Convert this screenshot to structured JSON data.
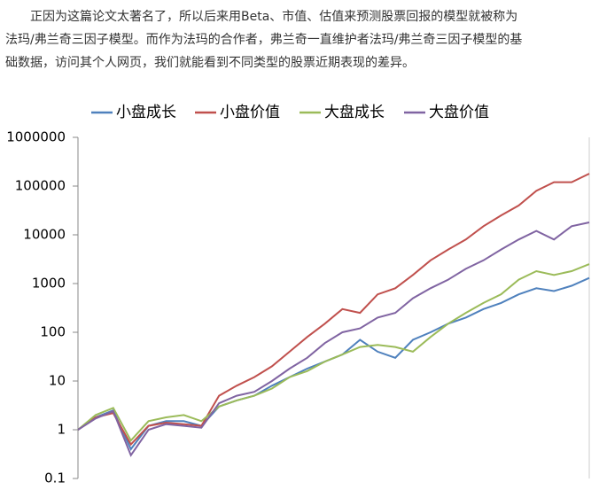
{
  "paragraph": [
    "正因为这篇论文太著名了，所以后来用Beta、市值、估值来预测股票回报的模型就被称为",
    "法玛/弗兰奇三因子模型。而作为法玛的合作者，弗兰奇一直维护者法玛/弗兰奇三因子模型的基",
    "础数据，访问其个人网页，我们就能看到不同类型的股票近期表现的差异。"
  ],
  "chart_data": {
    "type": "line",
    "log_scale": true,
    "grid": false,
    "legend": "top",
    "categories": [
      null,
      null,
      null,
      null,
      null,
      null,
      null,
      null,
      null,
      null,
      null,
      null,
      null,
      null,
      null,
      null,
      null,
      null,
      null,
      null,
      null,
      null,
      null,
      null,
      null,
      null,
      null,
      null,
      null,
      null
    ],
    "series": [
      {
        "name": "小盘成长",
        "color": "#4f81bd",
        "values": [
          1,
          1.8,
          2.5,
          0.4,
          1.2,
          1.5,
          1.5,
          1.2,
          3,
          4,
          5,
          8,
          12,
          18,
          25,
          35,
          70,
          40,
          30,
          70,
          100,
          150,
          200,
          300,
          400,
          600,
          800,
          700,
          900,
          1300
        ]
      },
      {
        "name": "小盘价值",
        "color": "#c0504d",
        "values": [
          1,
          1.8,
          2.2,
          0.5,
          1.2,
          1.4,
          1.3,
          1.2,
          5,
          8,
          12,
          20,
          40,
          80,
          150,
          300,
          250,
          600,
          800,
          1500,
          3000,
          5000,
          8000,
          15000,
          25000,
          40000,
          80000,
          120000,
          120000,
          180000
        ]
      },
      {
        "name": "大盘成长",
        "color": "#9bbb59",
        "values": [
          1,
          2,
          2.8,
          0.6,
          1.5,
          1.8,
          2,
          1.5,
          3,
          4,
          5,
          7,
          12,
          16,
          25,
          35,
          50,
          55,
          50,
          40,
          80,
          150,
          250,
          400,
          600,
          1200,
          1800,
          1500,
          1800,
          2500
        ]
      },
      {
        "name": "大盘价值",
        "color": "#8064a2",
        "values": [
          1,
          1.7,
          2.4,
          0.3,
          1,
          1.3,
          1.2,
          1.1,
          3.5,
          5,
          6,
          10,
          18,
          30,
          60,
          100,
          120,
          200,
          250,
          500,
          800,
          1200,
          2000,
          3000,
          5000,
          8000,
          12000,
          8000,
          15000,
          18000
        ]
      }
    ],
    "ylim": [
      0.1,
      1000000
    ],
    "yticks": [
      0.1,
      1,
      10,
      100,
      1000,
      10000,
      100000,
      1000000
    ]
  }
}
